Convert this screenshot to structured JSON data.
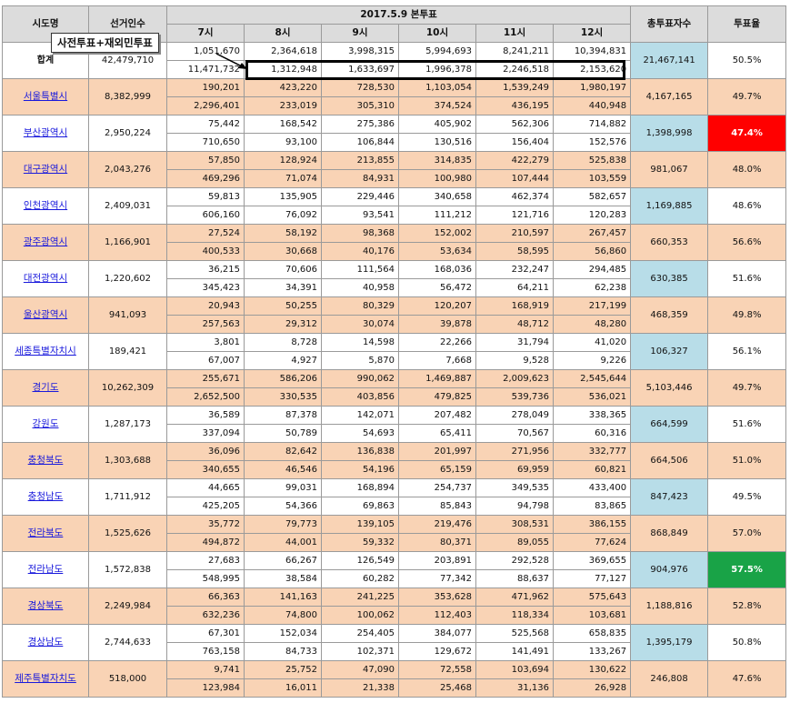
{
  "header": {
    "region": "시도명",
    "voters": "선거인수",
    "date_group": "2017.5.9 본투표",
    "hours": [
      "7시",
      "8시",
      "9시",
      "10시",
      "11시",
      "12시"
    ],
    "total_votes": "총투표자수",
    "turnout": "투표율"
  },
  "annotation": {
    "label": "사전투표+재외민투표"
  },
  "total": {
    "name": "합계",
    "voters": "42,479,710",
    "top": [
      "1,051,670",
      "2,364,618",
      "3,998,315",
      "5,994,693",
      "8,241,211",
      "10,394,831"
    ],
    "bottom": [
      "11,471,732",
      "1,312,948",
      "1,633,697",
      "1,996,378",
      "2,246,518",
      "2,153,620"
    ],
    "total_votes": "21,467,141",
    "turnout": "50.5%"
  },
  "rows": [
    {
      "name": "서울특별시",
      "voters": "8,382,999",
      "top": [
        "190,201",
        "423,220",
        "728,530",
        "1,103,054",
        "1,539,249",
        "1,980,197"
      ],
      "bottom": [
        "2,296,401",
        "233,019",
        "305,310",
        "374,524",
        "436,195",
        "440,948"
      ],
      "total_votes": "4,167,165",
      "turnout": "49.7%"
    },
    {
      "name": "부산광역시",
      "voters": "2,950,224",
      "top": [
        "75,442",
        "168,542",
        "275,386",
        "405,902",
        "562,306",
        "714,882"
      ],
      "bottom": [
        "710,650",
        "93,100",
        "106,844",
        "130,516",
        "156,404",
        "152,576"
      ],
      "total_votes": "1,398,998",
      "turnout": "47.4%"
    },
    {
      "name": "대구광역시",
      "voters": "2,043,276",
      "top": [
        "57,850",
        "128,924",
        "213,855",
        "314,835",
        "422,279",
        "525,838"
      ],
      "bottom": [
        "469,296",
        "71,074",
        "84,931",
        "100,980",
        "107,444",
        "103,559"
      ],
      "total_votes": "981,067",
      "turnout": "48.0%"
    },
    {
      "name": "인천광역시",
      "voters": "2,409,031",
      "top": [
        "59,813",
        "135,905",
        "229,446",
        "340,658",
        "462,374",
        "582,657"
      ],
      "bottom": [
        "606,160",
        "76,092",
        "93,541",
        "111,212",
        "121,716",
        "120,283"
      ],
      "total_votes": "1,169,885",
      "turnout": "48.6%"
    },
    {
      "name": "광주광역시",
      "voters": "1,166,901",
      "top": [
        "27,524",
        "58,192",
        "98,368",
        "152,002",
        "210,597",
        "267,457"
      ],
      "bottom": [
        "400,533",
        "30,668",
        "40,176",
        "53,634",
        "58,595",
        "56,860"
      ],
      "total_votes": "660,353",
      "turnout": "56.6%"
    },
    {
      "name": "대전광역시",
      "voters": "1,220,602",
      "top": [
        "36,215",
        "70,606",
        "111,564",
        "168,036",
        "232,247",
        "294,485"
      ],
      "bottom": [
        "345,423",
        "34,391",
        "40,958",
        "56,472",
        "64,211",
        "62,238"
      ],
      "total_votes": "630,385",
      "turnout": "51.6%"
    },
    {
      "name": "울산광역시",
      "voters": "941,093",
      "top": [
        "20,943",
        "50,255",
        "80,329",
        "120,207",
        "168,919",
        "217,199"
      ],
      "bottom": [
        "257,563",
        "29,312",
        "30,074",
        "39,878",
        "48,712",
        "48,280"
      ],
      "total_votes": "468,359",
      "turnout": "49.8%"
    },
    {
      "name": "세종특별자치시",
      "voters": "189,421",
      "top": [
        "3,801",
        "8,728",
        "14,598",
        "22,266",
        "31,794",
        "41,020"
      ],
      "bottom": [
        "67,007",
        "4,927",
        "5,870",
        "7,668",
        "9,528",
        "9,226"
      ],
      "total_votes": "106,327",
      "turnout": "56.1%"
    },
    {
      "name": "경기도",
      "voters": "10,262,309",
      "top": [
        "255,671",
        "586,206",
        "990,062",
        "1,469,887",
        "2,009,623",
        "2,545,644"
      ],
      "bottom": [
        "2,652,500",
        "330,535",
        "403,856",
        "479,825",
        "539,736",
        "536,021"
      ],
      "total_votes": "5,103,446",
      "turnout": "49.7%"
    },
    {
      "name": "강원도",
      "voters": "1,287,173",
      "top": [
        "36,589",
        "87,378",
        "142,071",
        "207,482",
        "278,049",
        "338,365"
      ],
      "bottom": [
        "337,094",
        "50,789",
        "54,693",
        "65,411",
        "70,567",
        "60,316"
      ],
      "total_votes": "664,599",
      "turnout": "51.6%"
    },
    {
      "name": "충청북도",
      "voters": "1,303,688",
      "top": [
        "36,096",
        "82,642",
        "136,838",
        "201,997",
        "271,956",
        "332,777"
      ],
      "bottom": [
        "340,655",
        "46,546",
        "54,196",
        "65,159",
        "69,959",
        "60,821"
      ],
      "total_votes": "664,506",
      "turnout": "51.0%"
    },
    {
      "name": "충청남도",
      "voters": "1,711,912",
      "top": [
        "44,665",
        "99,031",
        "168,894",
        "254,737",
        "349,535",
        "433,400"
      ],
      "bottom": [
        "425,205",
        "54,366",
        "69,863",
        "85,843",
        "94,798",
        "83,865"
      ],
      "total_votes": "847,423",
      "turnout": "49.5%"
    },
    {
      "name": "전라북도",
      "voters": "1,525,626",
      "top": [
        "35,772",
        "79,773",
        "139,105",
        "219,476",
        "308,531",
        "386,155"
      ],
      "bottom": [
        "494,872",
        "44,001",
        "59,332",
        "80,371",
        "89,055",
        "77,624"
      ],
      "total_votes": "868,849",
      "turnout": "57.0%"
    },
    {
      "name": "전라남도",
      "voters": "1,572,838",
      "top": [
        "27,683",
        "66,267",
        "126,549",
        "203,891",
        "292,528",
        "369,655"
      ],
      "bottom": [
        "548,995",
        "38,584",
        "60,282",
        "77,342",
        "88,637",
        "77,127"
      ],
      "total_votes": "904,976",
      "turnout": "57.5%"
    },
    {
      "name": "경상북도",
      "voters": "2,249,984",
      "top": [
        "66,363",
        "141,163",
        "241,225",
        "353,628",
        "471,962",
        "575,643"
      ],
      "bottom": [
        "632,236",
        "74,800",
        "100,062",
        "112,403",
        "118,334",
        "103,681"
      ],
      "total_votes": "1,188,816",
      "turnout": "52.8%"
    },
    {
      "name": "경상남도",
      "voters": "2,744,633",
      "top": [
        "67,301",
        "152,034",
        "254,405",
        "384,077",
        "525,568",
        "658,835"
      ],
      "bottom": [
        "763,158",
        "84,733",
        "102,371",
        "129,672",
        "141,491",
        "133,267"
      ],
      "total_votes": "1,395,179",
      "turnout": "50.8%"
    },
    {
      "name": "제주특별자치도",
      "voters": "518,000",
      "top": [
        "9,741",
        "25,752",
        "47,090",
        "72,558",
        "103,694",
        "130,622"
      ],
      "bottom": [
        "123,984",
        "16,011",
        "21,338",
        "25,468",
        "31,136",
        "26,928"
      ],
      "total_votes": "246,808",
      "turnout": "47.6%"
    }
  ],
  "styles": {
    "peach": "#f9d3b5",
    "light_blue": "#b8dde8",
    "turnout_min": "#ff0000",
    "turnout_max": "#19a347",
    "header_gray": "#dcdcdc"
  }
}
